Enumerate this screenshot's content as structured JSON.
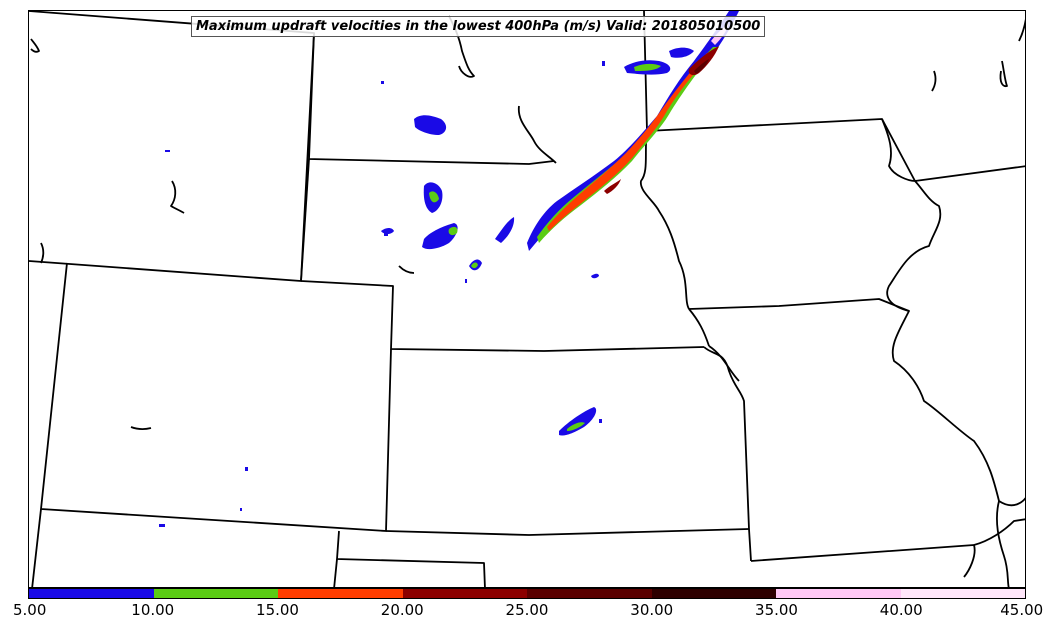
{
  "title": "Maximum updraft velocities in the lowest 400hPa (m/s) Valid: 201805010500",
  "colorbar": {
    "ticks": [
      "5.00",
      "10.00",
      "15.00",
      "20.00",
      "25.00",
      "30.00",
      "35.00",
      "40.00",
      "45.00"
    ],
    "colors": [
      "#1a0ae6",
      "#5bcc14",
      "#ff3d00",
      "#8c0000",
      "#5a0000",
      "#2d0000",
      "#ffc8f5",
      "#ffe6fa"
    ]
  },
  "colors": {
    "boundary": "#000000",
    "frame": "#000000",
    "background": "#ffffff"
  }
}
